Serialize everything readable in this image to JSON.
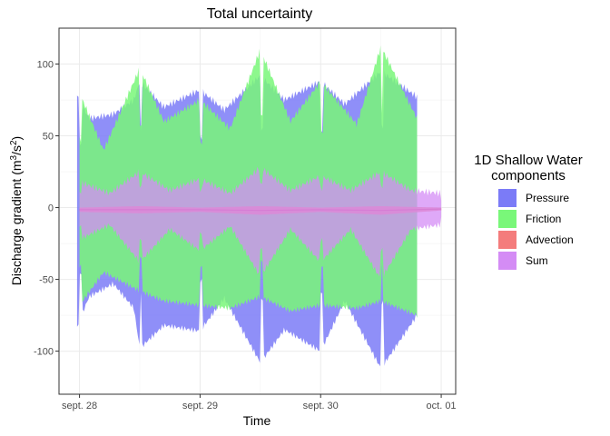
{
  "chart_data": {
    "type": "area",
    "title": "Total uncertainty",
    "xlabel": "Time",
    "ylabel": "Discharge gradient (m³/s²)",
    "ylabel_parts": {
      "base": "Discharge gradient (m",
      "sup1": "3",
      "mid": "/s",
      "sup2": "2",
      "end": ")"
    },
    "x_ticks": [
      "sept. 28",
      "sept. 29",
      "sept. 30",
      "oct. 01"
    ],
    "x_tick_values": [
      0,
      1,
      2,
      3
    ],
    "xlim": [
      -0.17,
      3.12
    ],
    "y_ticks": [
      100,
      50,
      0,
      -50,
      -100
    ],
    "ylim": [
      -130,
      125
    ],
    "grid": true,
    "legend": {
      "title_lines": [
        "1D Shallow Water",
        "components"
      ],
      "position": "right",
      "entries": [
        {
          "name": "Pressure",
          "color": "#7b7bf7"
        },
        {
          "name": "Friction",
          "color": "#79f779"
        },
        {
          "name": "Advection",
          "color": "#f47c7c"
        },
        {
          "name": "Sum",
          "color": "#d48cf5"
        }
      ]
    },
    "tidal_cycle_days": 0.5,
    "series": [
      {
        "name": "Pressure",
        "points": [
          {
            "x": -0.02,
            "low": -83,
            "high": 78
          },
          {
            "x": 0.08,
            "low": -62,
            "high": 62
          },
          {
            "x": 0.28,
            "low": -53,
            "high": 65
          },
          {
            "x": 0.45,
            "low": -70,
            "high": 75
          },
          {
            "x": 0.5,
            "low": -98,
            "high": 88
          },
          {
            "x": 0.7,
            "low": -82,
            "high": 70
          },
          {
            "x": 1.0,
            "low": -86,
            "high": 82
          },
          {
            "x": 1.2,
            "low": -63,
            "high": 68
          },
          {
            "x": 1.5,
            "low": -108,
            "high": 92
          },
          {
            "x": 1.7,
            "low": -85,
            "high": 75
          },
          {
            "x": 2.0,
            "low": -100,
            "high": 88
          },
          {
            "x": 2.2,
            "low": -65,
            "high": 72
          },
          {
            "x": 2.5,
            "low": -112,
            "high": 95
          },
          {
            "x": 2.8,
            "low": -75,
            "high": 77
          }
        ]
      },
      {
        "name": "Friction",
        "points": [
          {
            "x": 0.0,
            "low": -68,
            "high": 80
          },
          {
            "x": 0.2,
            "low": -45,
            "high": 40
          },
          {
            "x": 0.5,
            "low": -58,
            "high": 97
          },
          {
            "x": 0.7,
            "low": -65,
            "high": 60
          },
          {
            "x": 1.0,
            "low": -68,
            "high": 75
          },
          {
            "x": 1.25,
            "low": -70,
            "high": 55
          },
          {
            "x": 1.5,
            "low": -62,
            "high": 110
          },
          {
            "x": 1.75,
            "low": -72,
            "high": 60
          },
          {
            "x": 2.0,
            "low": -68,
            "high": 88
          },
          {
            "x": 2.3,
            "low": -70,
            "high": 58
          },
          {
            "x": 2.5,
            "low": -65,
            "high": 112
          },
          {
            "x": 2.8,
            "low": -75,
            "high": 62
          }
        ]
      },
      {
        "name": "Advection",
        "points": [
          {
            "x": 0.0,
            "low": -3,
            "high": 0
          },
          {
            "x": 0.5,
            "low": -4,
            "high": 1
          },
          {
            "x": 1.0,
            "low": -3,
            "high": 0
          },
          {
            "x": 1.5,
            "low": -5,
            "high": 1
          },
          {
            "x": 2.0,
            "low": -3,
            "high": 0
          },
          {
            "x": 2.5,
            "low": -5,
            "high": 1
          },
          {
            "x": 3.0,
            "low": -2,
            "high": 0
          }
        ]
      },
      {
        "name": "Sum",
        "points": [
          {
            "x": 0.0,
            "low": -22,
            "high": 18
          },
          {
            "x": 0.25,
            "low": -12,
            "high": 10
          },
          {
            "x": 0.5,
            "low": -38,
            "high": 25
          },
          {
            "x": 0.75,
            "low": -15,
            "high": 12
          },
          {
            "x": 1.0,
            "low": -30,
            "high": 20
          },
          {
            "x": 1.25,
            "low": -13,
            "high": 10
          },
          {
            "x": 1.5,
            "low": -48,
            "high": 28
          },
          {
            "x": 1.75,
            "low": -15,
            "high": 12
          },
          {
            "x": 2.0,
            "low": -38,
            "high": 22
          },
          {
            "x": 2.25,
            "low": -15,
            "high": 12
          },
          {
            "x": 2.5,
            "low": -50,
            "high": 25
          },
          {
            "x": 2.75,
            "low": -15,
            "high": 12
          },
          {
            "x": 3.0,
            "low": -12,
            "high": 10
          }
        ]
      }
    ]
  }
}
